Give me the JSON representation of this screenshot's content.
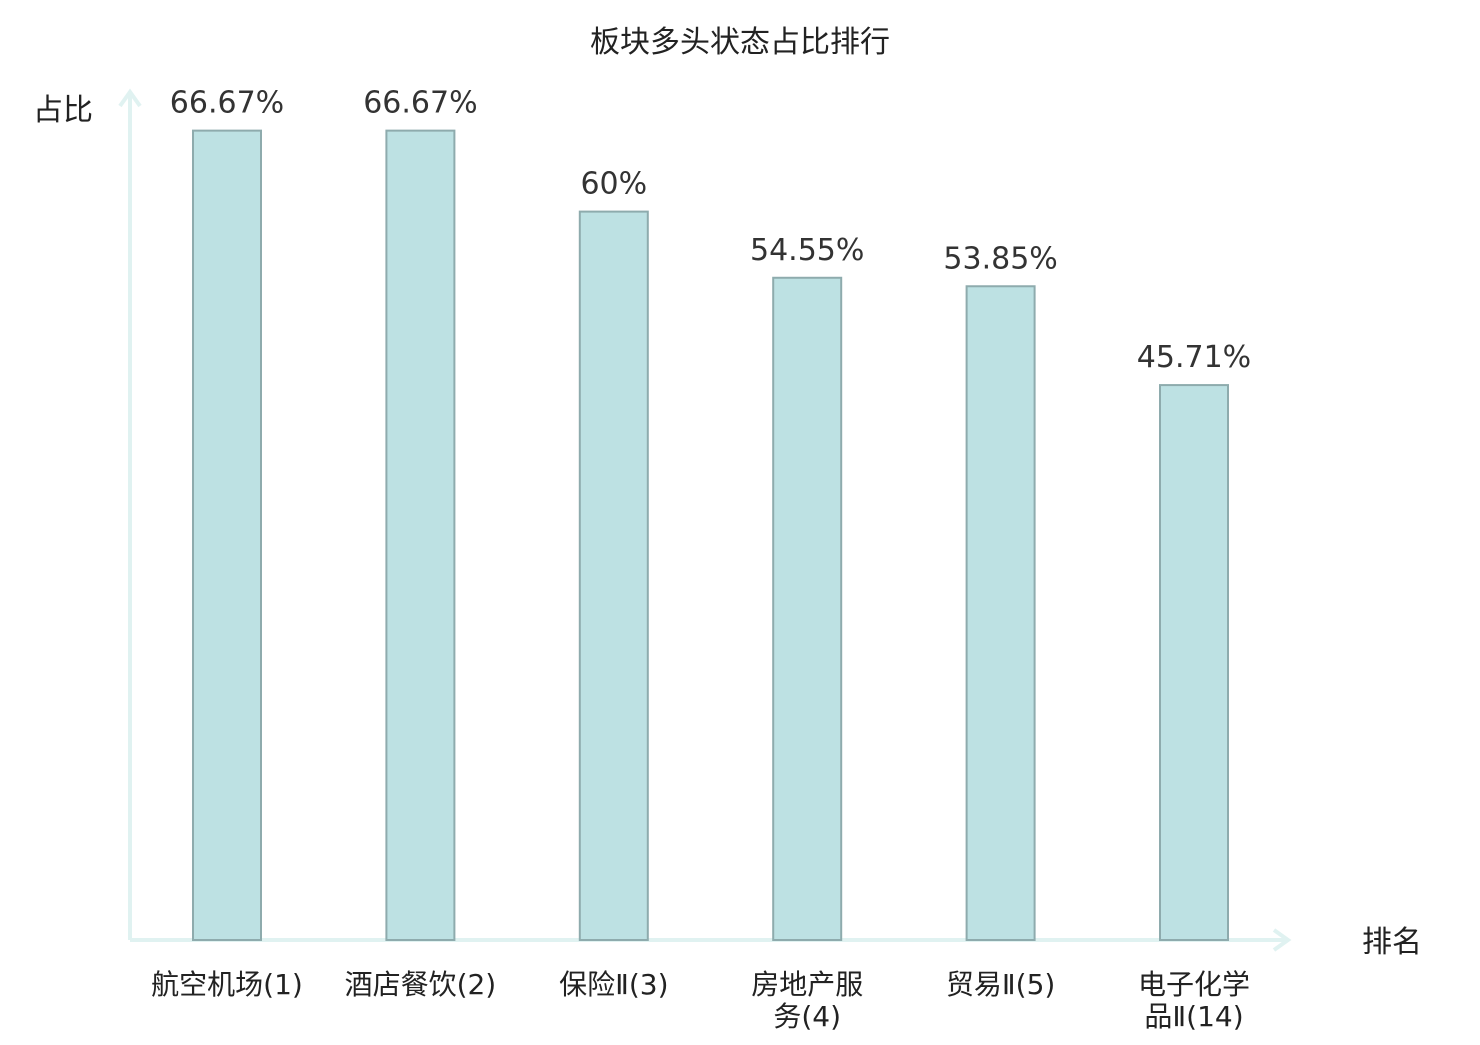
{
  "chart_data": {
    "type": "bar",
    "title": "板块多头状态占比排行",
    "ylabel": "占比",
    "xlabel": "排名",
    "ylim": [
      0,
      70
    ],
    "grid": false,
    "legend": "none",
    "categories": [
      [
        "航空机场(1)"
      ],
      [
        "酒店餐饮(2)"
      ],
      [
        "保险Ⅱ(3)"
      ],
      [
        "房地产服",
        "务(4)"
      ],
      [
        "贸易Ⅱ(5)"
      ],
      [
        "电子化学",
        "品Ⅱ(14)"
      ]
    ],
    "values": [
      66.67,
      66.67,
      60,
      54.55,
      53.85,
      45.71
    ],
    "value_labels": [
      "66.67%",
      "66.67%",
      "60%",
      "54.55%",
      "53.85%",
      "45.71%"
    ],
    "highlight_index": 5
  },
  "colors": {
    "bar_fill": "#bde1e3",
    "bar_stroke": "#8eabad",
    "axis": "#e0f2f1",
    "highlight_text": "#e00000",
    "text": "#222222"
  }
}
